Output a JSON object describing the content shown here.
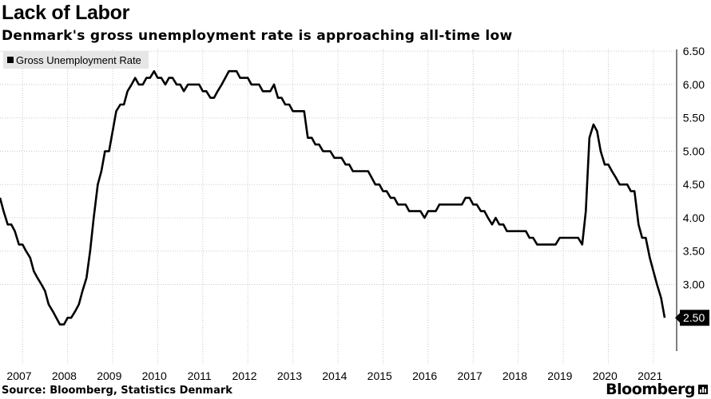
{
  "header": {
    "title": "Lack of Labor",
    "subtitle": "Denmark's gross unemployment rate is approaching all-time low"
  },
  "footer": {
    "source": "Source: Bloomberg, Statistics Denmark",
    "brand": "Bloomberg"
  },
  "chart_data": {
    "type": "line",
    "title": "Lack of Labor",
    "subtitle": "Denmark's gross unemployment rate is approaching all-time low",
    "legend": {
      "label": "Gross Unemployment Rate",
      "position": "top-left"
    },
    "xlabel": "",
    "ylabel": "",
    "x_ticks": [
      "2007",
      "2008",
      "2009",
      "2010",
      "2011",
      "2012",
      "2013",
      "2014",
      "2015",
      "2016",
      "2017",
      "2018",
      "2019",
      "2020",
      "2021"
    ],
    "y_ticks": [
      "6.50",
      "6.00",
      "5.50",
      "5.00",
      "4.50",
      "4.00",
      "3.50",
      "3.00"
    ],
    "ylim": [
      2.0,
      6.55
    ],
    "xlim": [
      2007.0,
      2021.75
    ],
    "grid": true,
    "last_value_label": "2.50",
    "series": [
      {
        "name": "Gross Unemployment Rate",
        "points": [
          [
            2007.0,
            4.3
          ],
          [
            2007.08,
            4.1
          ],
          [
            2007.17,
            3.9
          ],
          [
            2007.25,
            3.9
          ],
          [
            2007.33,
            3.8
          ],
          [
            2007.42,
            3.6
          ],
          [
            2007.5,
            3.6
          ],
          [
            2007.58,
            3.5
          ],
          [
            2007.67,
            3.4
          ],
          [
            2007.75,
            3.2
          ],
          [
            2007.83,
            3.1
          ],
          [
            2007.92,
            3.0
          ],
          [
            2008.0,
            2.9
          ],
          [
            2008.08,
            2.7
          ],
          [
            2008.17,
            2.6
          ],
          [
            2008.25,
            2.5
          ],
          [
            2008.33,
            2.4
          ],
          [
            2008.42,
            2.4
          ],
          [
            2008.5,
            2.5
          ],
          [
            2008.58,
            2.5
          ],
          [
            2008.67,
            2.6
          ],
          [
            2008.75,
            2.7
          ],
          [
            2008.83,
            2.9
          ],
          [
            2008.92,
            3.1
          ],
          [
            2009.0,
            3.5
          ],
          [
            2009.08,
            4.0
          ],
          [
            2009.17,
            4.5
          ],
          [
            2009.25,
            4.7
          ],
          [
            2009.33,
            5.0
          ],
          [
            2009.42,
            5.0
          ],
          [
            2009.5,
            5.3
          ],
          [
            2009.58,
            5.6
          ],
          [
            2009.67,
            5.7
          ],
          [
            2009.75,
            5.7
          ],
          [
            2009.83,
            5.9
          ],
          [
            2009.92,
            6.0
          ],
          [
            2010.0,
            6.1
          ],
          [
            2010.08,
            6.0
          ],
          [
            2010.17,
            6.0
          ],
          [
            2010.25,
            6.1
          ],
          [
            2010.33,
            6.1
          ],
          [
            2010.42,
            6.2
          ],
          [
            2010.5,
            6.1
          ],
          [
            2010.58,
            6.1
          ],
          [
            2010.67,
            6.0
          ],
          [
            2010.75,
            6.1
          ],
          [
            2010.83,
            6.1
          ],
          [
            2010.92,
            6.0
          ],
          [
            2011.0,
            6.0
          ],
          [
            2011.08,
            5.9
          ],
          [
            2011.17,
            6.0
          ],
          [
            2011.25,
            6.0
          ],
          [
            2011.33,
            6.0
          ],
          [
            2011.42,
            6.0
          ],
          [
            2011.5,
            5.9
          ],
          [
            2011.58,
            5.9
          ],
          [
            2011.67,
            5.8
          ],
          [
            2011.75,
            5.8
          ],
          [
            2011.83,
            5.9
          ],
          [
            2011.92,
            6.0
          ],
          [
            2012.0,
            6.1
          ],
          [
            2012.08,
            6.2
          ],
          [
            2012.17,
            6.2
          ],
          [
            2012.25,
            6.2
          ],
          [
            2012.33,
            6.1
          ],
          [
            2012.42,
            6.1
          ],
          [
            2012.5,
            6.1
          ],
          [
            2012.58,
            6.0
          ],
          [
            2012.67,
            6.0
          ],
          [
            2012.75,
            6.0
          ],
          [
            2012.83,
            5.9
          ],
          [
            2012.92,
            5.9
          ],
          [
            2013.0,
            5.9
          ],
          [
            2013.08,
            6.0
          ],
          [
            2013.17,
            5.8
          ],
          [
            2013.25,
            5.8
          ],
          [
            2013.33,
            5.7
          ],
          [
            2013.42,
            5.7
          ],
          [
            2013.5,
            5.6
          ],
          [
            2013.58,
            5.6
          ],
          [
            2013.67,
            5.6
          ],
          [
            2013.75,
            5.6
          ],
          [
            2013.83,
            5.2
          ],
          [
            2013.92,
            5.2
          ],
          [
            2014.0,
            5.1
          ],
          [
            2014.08,
            5.1
          ],
          [
            2014.17,
            5.0
          ],
          [
            2014.25,
            5.0
          ],
          [
            2014.33,
            5.0
          ],
          [
            2014.42,
            4.9
          ],
          [
            2014.5,
            4.9
          ],
          [
            2014.58,
            4.9
          ],
          [
            2014.67,
            4.8
          ],
          [
            2014.75,
            4.8
          ],
          [
            2014.83,
            4.7
          ],
          [
            2014.92,
            4.7
          ],
          [
            2015.0,
            4.7
          ],
          [
            2015.08,
            4.7
          ],
          [
            2015.17,
            4.7
          ],
          [
            2015.25,
            4.6
          ],
          [
            2015.33,
            4.5
          ],
          [
            2015.42,
            4.5
          ],
          [
            2015.5,
            4.4
          ],
          [
            2015.58,
            4.4
          ],
          [
            2015.67,
            4.3
          ],
          [
            2015.75,
            4.3
          ],
          [
            2015.83,
            4.2
          ],
          [
            2015.92,
            4.2
          ],
          [
            2016.0,
            4.2
          ],
          [
            2016.08,
            4.1
          ],
          [
            2016.17,
            4.1
          ],
          [
            2016.25,
            4.1
          ],
          [
            2016.33,
            4.1
          ],
          [
            2016.42,
            4.0
          ],
          [
            2016.5,
            4.1
          ],
          [
            2016.58,
            4.1
          ],
          [
            2016.67,
            4.1
          ],
          [
            2016.75,
            4.2
          ],
          [
            2016.83,
            4.2
          ],
          [
            2016.92,
            4.2
          ],
          [
            2017.0,
            4.2
          ],
          [
            2017.08,
            4.2
          ],
          [
            2017.17,
            4.2
          ],
          [
            2017.25,
            4.2
          ],
          [
            2017.33,
            4.3
          ],
          [
            2017.42,
            4.3
          ],
          [
            2017.5,
            4.2
          ],
          [
            2017.58,
            4.2
          ],
          [
            2017.67,
            4.1
          ],
          [
            2017.75,
            4.1
          ],
          [
            2017.83,
            4.0
          ],
          [
            2017.92,
            3.9
          ],
          [
            2018.0,
            4.0
          ],
          [
            2018.08,
            3.9
          ],
          [
            2018.17,
            3.9
          ],
          [
            2018.25,
            3.8
          ],
          [
            2018.33,
            3.8
          ],
          [
            2018.42,
            3.8
          ],
          [
            2018.5,
            3.8
          ],
          [
            2018.58,
            3.8
          ],
          [
            2018.67,
            3.8
          ],
          [
            2018.75,
            3.7
          ],
          [
            2018.83,
            3.7
          ],
          [
            2018.92,
            3.6
          ],
          [
            2019.0,
            3.6
          ],
          [
            2019.08,
            3.6
          ],
          [
            2019.17,
            3.6
          ],
          [
            2019.25,
            3.6
          ],
          [
            2019.33,
            3.6
          ],
          [
            2019.42,
            3.7
          ],
          [
            2019.5,
            3.7
          ],
          [
            2019.58,
            3.7
          ],
          [
            2019.67,
            3.7
          ],
          [
            2019.75,
            3.7
          ],
          [
            2019.83,
            3.7
          ],
          [
            2019.92,
            3.6
          ],
          [
            2020.0,
            4.1
          ],
          [
            2020.08,
            5.2
          ],
          [
            2020.17,
            5.4
          ],
          [
            2020.25,
            5.3
          ],
          [
            2020.33,
            5.0
          ],
          [
            2020.42,
            4.8
          ],
          [
            2020.5,
            4.8
          ],
          [
            2020.58,
            4.7
          ],
          [
            2020.67,
            4.6
          ],
          [
            2020.75,
            4.5
          ],
          [
            2020.83,
            4.5
          ],
          [
            2020.92,
            4.5
          ],
          [
            2021.0,
            4.4
          ],
          [
            2021.08,
            4.4
          ],
          [
            2021.17,
            3.9
          ],
          [
            2021.25,
            3.7
          ],
          [
            2021.33,
            3.7
          ],
          [
            2021.42,
            3.4
          ],
          [
            2021.5,
            3.2
          ],
          [
            2021.58,
            3.0
          ],
          [
            2021.67,
            2.8
          ],
          [
            2021.75,
            2.5
          ]
        ]
      }
    ]
  }
}
